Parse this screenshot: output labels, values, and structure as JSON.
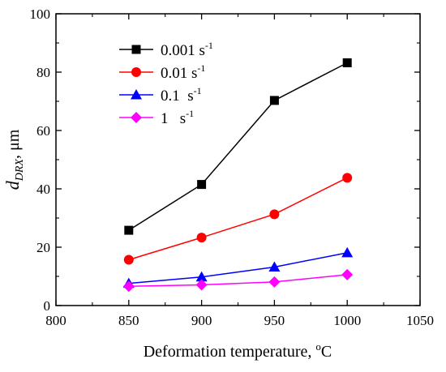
{
  "chart_data": {
    "type": "line",
    "xlabel": "Deformation temperature, °C",
    "xlabel_parts": {
      "text": "Deformation temperature, ",
      "sup": "o",
      "unit": "C"
    },
    "ylabel": "d_DRX, μm",
    "ylabel_parts": {
      "main": "d",
      "sub": "DRX",
      "rest": ", μm"
    },
    "xlim": [
      800,
      1050
    ],
    "ylim": [
      0,
      100
    ],
    "xticks": [
      800,
      850,
      900,
      950,
      1000,
      1050
    ],
    "yticks": [
      0,
      20,
      40,
      60,
      80,
      100
    ],
    "grid": false,
    "legend_position": "upper-left",
    "x": [
      850,
      900,
      950,
      1000
    ],
    "series": [
      {
        "name": "0.001 s-1",
        "name_base": "0.001 s",
        "name_sup": "-1",
        "color": "#000000",
        "marker": "square",
        "values": [
          25.8,
          41.5,
          70.3,
          83.2
        ]
      },
      {
        "name": "0.01 s-1",
        "name_base": "0.01 s",
        "name_sup": "-1",
        "color": "#ff0000",
        "marker": "circle",
        "values": [
          15.7,
          23.3,
          31.3,
          43.8
        ]
      },
      {
        "name": "0.1 s-1",
        "name_base": "0.1  s",
        "name_sup": "-1",
        "color": "#0000ff",
        "marker": "triangle",
        "values": [
          7.6,
          9.8,
          13.2,
          18.1
        ]
      },
      {
        "name": "1 s-1",
        "name_base": "1   s",
        "name_sup": "-1",
        "color": "#ff00ff",
        "marker": "diamond",
        "values": [
          6.6,
          7.1,
          8.1,
          10.6
        ]
      }
    ]
  }
}
